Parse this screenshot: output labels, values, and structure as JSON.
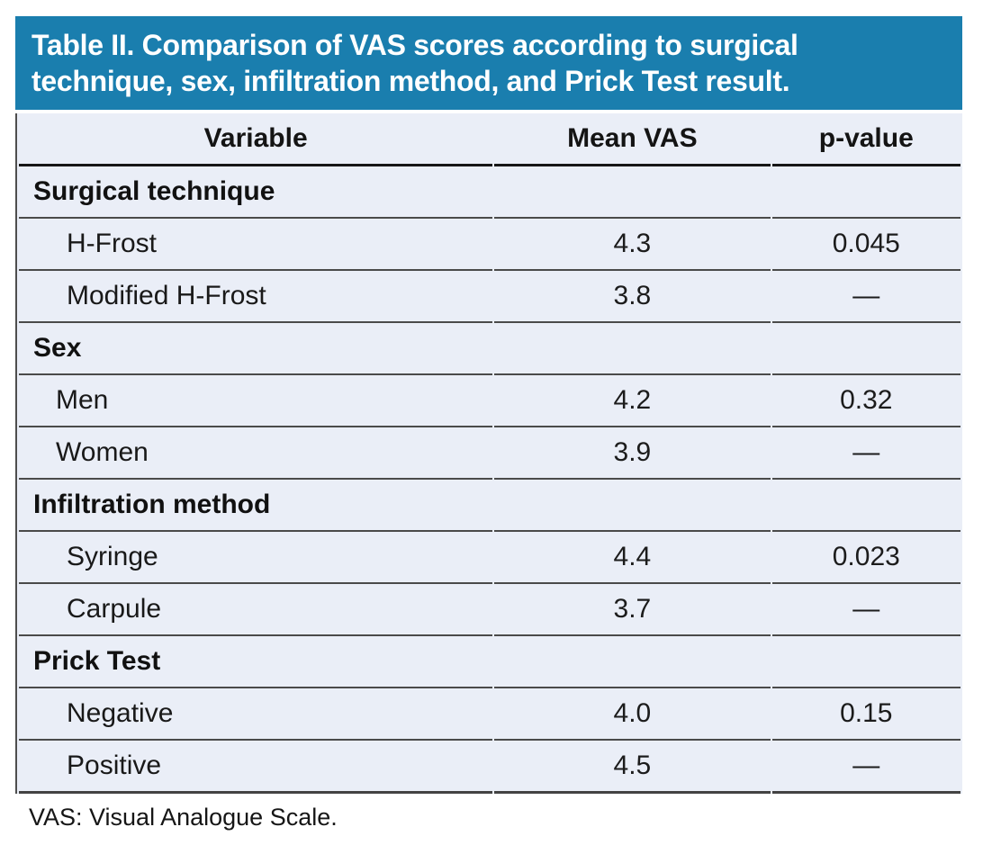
{
  "title": {
    "text": "Table II. Comparison of VAS scores according to surgical technique, sex, infiltration method, and Prick Test result."
  },
  "table": {
    "columns": [
      "Variable",
      "Mean VAS",
      "p-value"
    ],
    "rows": [
      {
        "type": "section",
        "label": "Surgical technique"
      },
      {
        "type": "item",
        "label": "H-Frost",
        "mean_vas": "4.3",
        "p_value": "0.045",
        "indent": 2
      },
      {
        "type": "item",
        "label": "Modified H-Frost",
        "mean_vas": "3.8",
        "p_value": "—",
        "indent": 2
      },
      {
        "type": "section",
        "label": "Sex"
      },
      {
        "type": "item",
        "label": "Men",
        "mean_vas": "4.2",
        "p_value": "0.32",
        "indent": 1
      },
      {
        "type": "item",
        "label": "Women",
        "mean_vas": "3.9",
        "p_value": "—",
        "indent": 1
      },
      {
        "type": "section",
        "label": "Infiltration method"
      },
      {
        "type": "item",
        "label": "Syringe",
        "mean_vas": "4.4",
        "p_value": "0.023",
        "indent": 2
      },
      {
        "type": "item",
        "label": "Carpule",
        "mean_vas": "3.7",
        "p_value": "—",
        "indent": 2
      },
      {
        "type": "section",
        "label": "Prick Test"
      },
      {
        "type": "item",
        "label": "Negative",
        "mean_vas": "4.0",
        "p_value": "0.15",
        "indent": 2
      },
      {
        "type": "item",
        "label": "Positive",
        "mean_vas": "4.5",
        "p_value": "—",
        "indent": 2
      }
    ]
  },
  "footnote": {
    "text": "VAS: Visual Analogue Scale."
  },
  "colors": {
    "title_bg": "#1a7eae",
    "title_text": "#ffffff",
    "row_bg": "#eaeef7",
    "rule": "#4a4a4a",
    "header_rule": "#161616",
    "text": "#191919",
    "page_bg": "#ffffff"
  },
  "chart_data": {
    "type": "table",
    "title": "Table II. Comparison of VAS scores according to surgical technique, sex, infiltration method, and Prick Test result.",
    "columns": [
      "Variable",
      "Mean VAS",
      "p-value"
    ],
    "groups": [
      {
        "group": "Surgical technique",
        "entries": [
          {
            "variable": "H-Frost",
            "mean_vas": 4.3,
            "p_value": "0.045"
          },
          {
            "variable": "Modified H-Frost",
            "mean_vas": 3.8,
            "p_value": "—"
          }
        ]
      },
      {
        "group": "Sex",
        "entries": [
          {
            "variable": "Men",
            "mean_vas": 4.2,
            "p_value": "0.32"
          },
          {
            "variable": "Women",
            "mean_vas": 3.9,
            "p_value": "—"
          }
        ]
      },
      {
        "group": "Infiltration method",
        "entries": [
          {
            "variable": "Syringe",
            "mean_vas": 4.4,
            "p_value": "0.023"
          },
          {
            "variable": "Carpule",
            "mean_vas": 3.7,
            "p_value": "—"
          }
        ]
      },
      {
        "group": "Prick Test",
        "entries": [
          {
            "variable": "Negative",
            "mean_vas": 4.0,
            "p_value": "0.15"
          },
          {
            "variable": "Positive",
            "mean_vas": 4.5,
            "p_value": "—"
          }
        ]
      }
    ],
    "footnote": "VAS: Visual Analogue Scale."
  }
}
